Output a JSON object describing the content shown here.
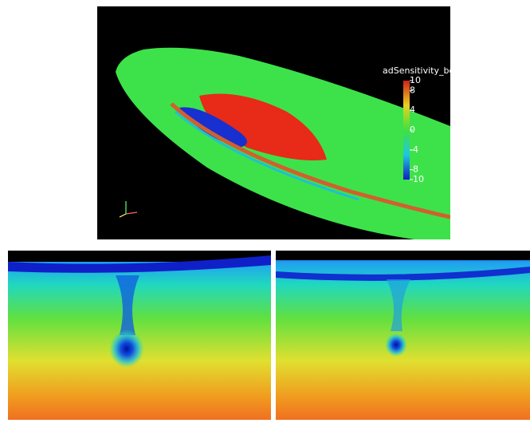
{
  "colorbar": {
    "title": "adSensitivity_bo",
    "lim": [
      -10,
      10
    ],
    "ticks": [
      10,
      8,
      4,
      0,
      -4,
      -8,
      -10
    ]
  }
}
